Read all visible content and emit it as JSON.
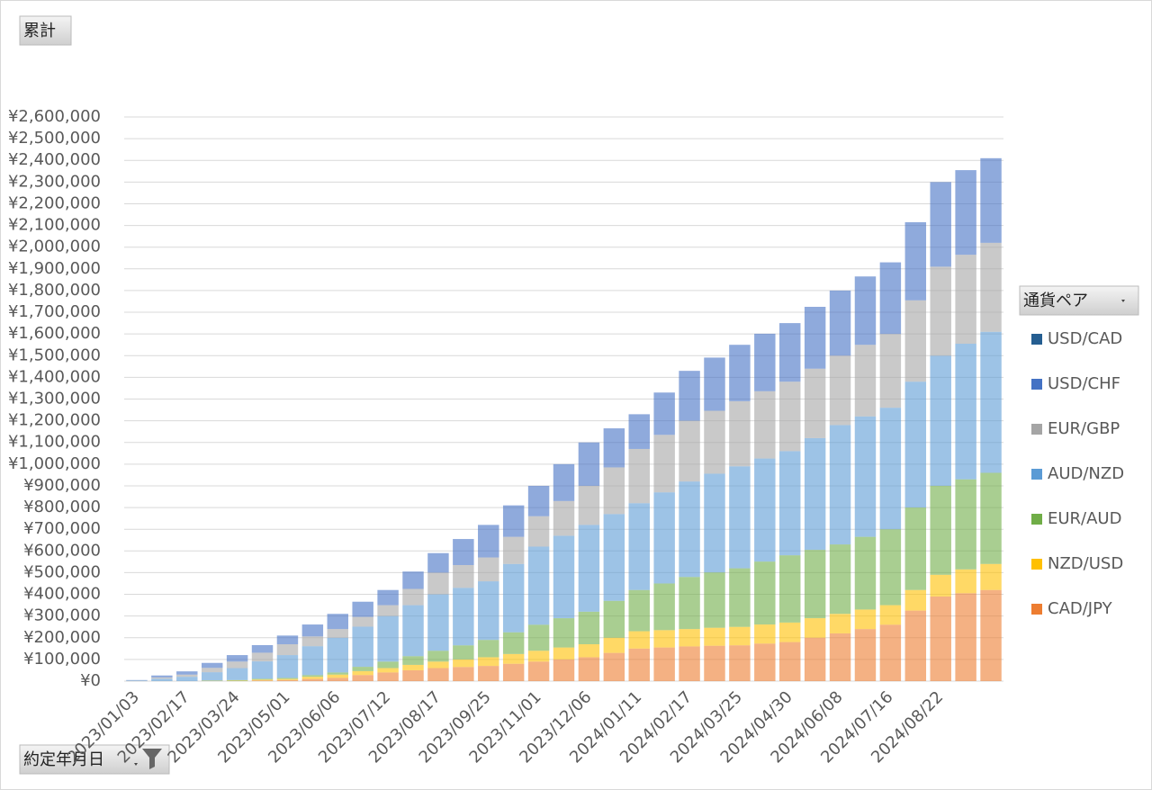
{
  "chart_data": {
    "type": "stacked_bar",
    "value_field_button": "累計",
    "legend_title": "通貨ペア",
    "axis_field_button": "約定年月日",
    "categories": [
      "2023/01/03",
      null,
      "2023/02/17",
      null,
      "2023/03/24",
      null,
      "2023/05/01",
      null,
      "2023/06/06",
      null,
      "2023/07/12",
      null,
      "2023/08/17",
      null,
      "2023/09/25",
      null,
      "2023/11/01",
      null,
      "2023/12/06",
      null,
      "2024/01/11",
      null,
      "2024/02/17",
      null,
      "2024/03/25",
      null,
      "2024/04/30",
      null,
      "2024/06/08",
      null,
      "2024/07/16",
      null,
      "2024/08/22",
      null,
      null
    ],
    "series": [
      {
        "name": "CAD/JPY",
        "color": "#ED7D31",
        "values": [
          0,
          0,
          0,
          0,
          0,
          3000,
          5000,
          10000,
          15000,
          28000,
          40000,
          50000,
          60000,
          65000,
          70000,
          80000,
          90000,
          100000,
          110000,
          130000,
          150000,
          155000,
          160000,
          163000,
          165000,
          173000,
          180000,
          200000,
          220000,
          240000,
          260000,
          325000,
          390000,
          405000,
          420000
        ]
      },
      {
        "name": "NZD/USD",
        "color": "#FFC000",
        "values": [
          0,
          0,
          0,
          1000,
          2000,
          4000,
          5000,
          10000,
          15000,
          18000,
          20000,
          25000,
          30000,
          35000,
          40000,
          45000,
          50000,
          55000,
          60000,
          70000,
          80000,
          80000,
          80000,
          83000,
          85000,
          88000,
          90000,
          90000,
          90000,
          90000,
          90000,
          95000,
          100000,
          110000,
          120000
        ]
      },
      {
        "name": "EUR/AUD",
        "color": "#70AD47",
        "values": [
          0,
          0,
          0,
          2000,
          3000,
          4000,
          5000,
          8000,
          10000,
          20000,
          30000,
          40000,
          50000,
          65000,
          80000,
          100000,
          120000,
          135000,
          150000,
          170000,
          190000,
          215000,
          240000,
          255000,
          270000,
          290000,
          310000,
          315000,
          320000,
          335000,
          350000,
          380000,
          410000,
          415000,
          420000
        ]
      },
      {
        "name": "AUD/NZD",
        "color": "#5B9BD5",
        "values": [
          2000,
          11000,
          20000,
          38000,
          55000,
          80000,
          105000,
          133000,
          160000,
          185000,
          210000,
          235000,
          260000,
          265000,
          270000,
          315000,
          360000,
          380000,
          400000,
          400000,
          400000,
          420000,
          440000,
          455000,
          470000,
          475000,
          480000,
          515000,
          550000,
          555000,
          560000,
          580000,
          600000,
          625000,
          650000
        ]
      },
      {
        "name": "EUR/GBP",
        "color": "#A5A5A5",
        "values": [
          1000,
          6000,
          10000,
          20000,
          30000,
          40000,
          50000,
          45000,
          40000,
          45000,
          50000,
          75000,
          100000,
          105000,
          110000,
          125000,
          140000,
          160000,
          180000,
          215000,
          250000,
          265000,
          280000,
          290000,
          300000,
          310000,
          320000,
          320000,
          320000,
          330000,
          340000,
          375000,
          410000,
          410000,
          410000
        ]
      },
      {
        "name": "USD/CHF",
        "color": "#4472C4",
        "values": [
          2000,
          9000,
          15000,
          23000,
          30000,
          35000,
          40000,
          55000,
          70000,
          70000,
          70000,
          80000,
          90000,
          120000,
          150000,
          145000,
          140000,
          170000,
          200000,
          180000,
          160000,
          195000,
          230000,
          245000,
          260000,
          265000,
          270000,
          285000,
          300000,
          315000,
          330000,
          360000,
          390000,
          390000,
          390000
        ]
      },
      {
        "name": "USD/CAD",
        "color": "#255E91",
        "values": [
          0,
          0,
          0,
          0,
          0,
          0,
          0,
          0,
          0,
          0,
          0,
          0,
          0,
          0,
          0,
          0,
          0,
          0,
          0,
          0,
          0,
          0,
          0,
          0,
          0,
          0,
          0,
          0,
          0,
          0,
          0,
          0,
          0,
          0,
          0
        ]
      }
    ],
    "ylim": [
      0,
      2600000
    ],
    "yticks": [
      {
        "value": 0,
        "label": "¥0"
      },
      {
        "value": 100000,
        "label": "¥100,000"
      },
      {
        "value": 200000,
        "label": "¥200,000"
      },
      {
        "value": 300000,
        "label": "¥300,000"
      },
      {
        "value": 400000,
        "label": "¥400,000"
      },
      {
        "value": 500000,
        "label": "¥500,000"
      },
      {
        "value": 600000,
        "label": "¥600,000"
      },
      {
        "value": 700000,
        "label": "¥700,000"
      },
      {
        "value": 800000,
        "label": "¥800,000"
      },
      {
        "value": 900000,
        "label": "¥900,000"
      },
      {
        "value": 1000000,
        "label": "¥1,000,000"
      },
      {
        "value": 1100000,
        "label": "¥1,100,000"
      },
      {
        "value": 1200000,
        "label": "¥1,200,000"
      },
      {
        "value": 1300000,
        "label": "¥1,300,000"
      },
      {
        "value": 1400000,
        "label": "¥1,400,000"
      },
      {
        "value": 1500000,
        "label": "¥1,500,000"
      },
      {
        "value": 1600000,
        "label": "¥1,600,000"
      },
      {
        "value": 1700000,
        "label": "¥1,700,000"
      },
      {
        "value": 1800000,
        "label": "¥1,800,000"
      },
      {
        "value": 1900000,
        "label": "¥1,900,000"
      },
      {
        "value": 2000000,
        "label": "¥2,000,000"
      },
      {
        "value": 2100000,
        "label": "¥2,100,000"
      },
      {
        "value": 2200000,
        "label": "¥2,200,000"
      },
      {
        "value": 2300000,
        "label": "¥2,300,000"
      },
      {
        "value": 2400000,
        "label": "¥2,400,000"
      },
      {
        "value": 2500000,
        "label": "¥2,500,000"
      },
      {
        "value": 2600000,
        "label": "¥2,600,000"
      }
    ],
    "grid": true,
    "legend": "right"
  }
}
